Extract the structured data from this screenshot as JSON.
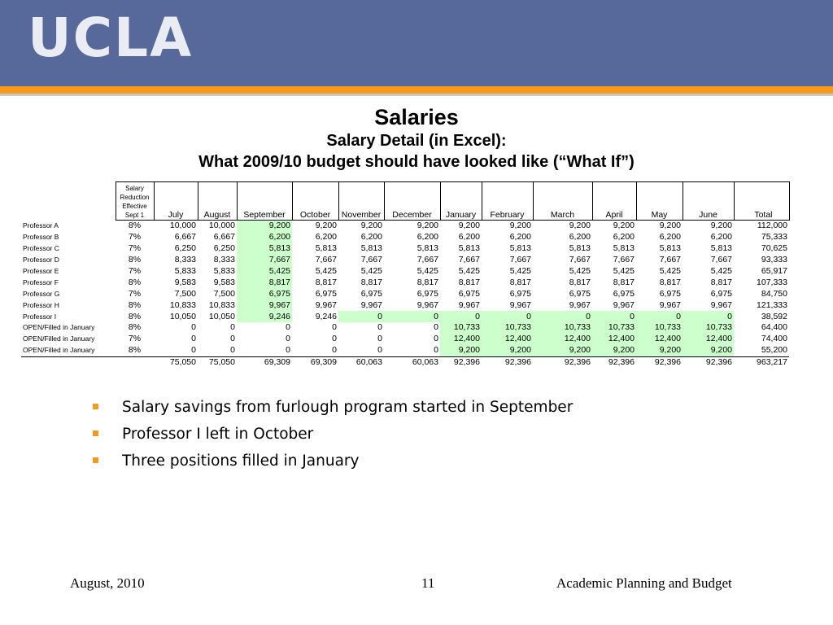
{
  "header": {
    "logo_text": "UCLA",
    "logo_icon": "ucla-wordmark",
    "bar_color": "#56699a",
    "accent_color": "#f59a1b"
  },
  "titles": {
    "title": "Salaries",
    "subtitle1": "Salary Detail (in Excel):",
    "subtitle2": "What 2009/10 budget should have looked like (“What If”)"
  },
  "table": {
    "rate_header": [
      "Salary",
      "Reduction",
      "Effective",
      "Sept 1"
    ],
    "months": [
      "July",
      "August",
      "September",
      "October",
      "November",
      "December",
      "January",
      "February",
      "March",
      "April",
      "May",
      "June"
    ],
    "total_label": "Total",
    "highlight_color": "#ccffcc",
    "rows": [
      {
        "name": "Professor A",
        "pct": "8%",
        "v": [
          "10,000",
          "10,000",
          "9,200",
          "9,200",
          "9,200",
          "9,200",
          "9,200",
          "9,200",
          "9,200",
          "9,200",
          "9,200",
          "9,200"
        ],
        "total": "112,000"
      },
      {
        "name": "Professor B",
        "pct": "7%",
        "v": [
          "6,667",
          "6,667",
          "6,200",
          "6,200",
          "6,200",
          "6,200",
          "6,200",
          "6,200",
          "6,200",
          "6,200",
          "6,200",
          "6,200"
        ],
        "total": "75,333"
      },
      {
        "name": "Professor C",
        "pct": "7%",
        "v": [
          "6,250",
          "6,250",
          "5,813",
          "5,813",
          "5,813",
          "5,813",
          "5,813",
          "5,813",
          "5,813",
          "5,813",
          "5,813",
          "5,813"
        ],
        "total": "70,625"
      },
      {
        "name": "Professor D",
        "pct": "8%",
        "v": [
          "8,333",
          "8,333",
          "7,667",
          "7,667",
          "7,667",
          "7,667",
          "7,667",
          "7,667",
          "7,667",
          "7,667",
          "7,667",
          "7,667"
        ],
        "total": "93,333"
      },
      {
        "name": "Professor E",
        "pct": "7%",
        "v": [
          "5,833",
          "5,833",
          "5,425",
          "5,425",
          "5,425",
          "5,425",
          "5,425",
          "5,425",
          "5,425",
          "5,425",
          "5,425",
          "5,425"
        ],
        "total": "65,917"
      },
      {
        "name": "Professor F",
        "pct": "8%",
        "v": [
          "9,583",
          "9,583",
          "8,817",
          "8,817",
          "8,817",
          "8,817",
          "8,817",
          "8,817",
          "8,817",
          "8,817",
          "8,817",
          "8,817"
        ],
        "total": "107,333"
      },
      {
        "name": "Professor G",
        "pct": "7%",
        "v": [
          "7,500",
          "7,500",
          "6,975",
          "6,975",
          "6,975",
          "6,975",
          "6,975",
          "6,975",
          "6,975",
          "6,975",
          "6,975",
          "6,975"
        ],
        "total": "84,750"
      },
      {
        "name": "Professor H",
        "pct": "8%",
        "v": [
          "10,833",
          "10,833",
          "9,967",
          "9,967",
          "9,967",
          "9,967",
          "9,967",
          "9,967",
          "9,967",
          "9,967",
          "9,967",
          "9,967"
        ],
        "total": "121,333"
      },
      {
        "name": "Professor I",
        "pct": "8%",
        "v": [
          "10,050",
          "10,050",
          "9,246",
          "9,246",
          "0",
          "0",
          "0",
          "0",
          "0",
          "0",
          "0",
          "0"
        ],
        "total": "38,592"
      },
      {
        "name": "OPEN/Filled in January",
        "pct": "8%",
        "v": [
          "0",
          "0",
          "0",
          "0",
          "0",
          "0",
          "10,733",
          "10,733",
          "10,733",
          "10,733",
          "10,733",
          "10,733"
        ],
        "total": "64,400"
      },
      {
        "name": "OPEN/Filled in January",
        "pct": "7%",
        "v": [
          "0",
          "0",
          "0",
          "0",
          "0",
          "0",
          "12,400",
          "12,400",
          "12,400",
          "12,400",
          "12,400",
          "12,400"
        ],
        "total": "74,400"
      },
      {
        "name": "OPEN/Filled in January",
        "pct": "8%",
        "v": [
          "0",
          "0",
          "0",
          "0",
          "0",
          "0",
          "9,200",
          "9,200",
          "9,200",
          "9,200",
          "9,200",
          "9,200"
        ],
        "total": "55,200"
      }
    ],
    "totals": [
      "75,050",
      "75,050",
      "69,309",
      "69,309",
      "60,063",
      "60,063",
      "92,396",
      "92,396",
      "92,396",
      "92,396",
      "92,396",
      "92,396"
    ],
    "grand_total": "963,217"
  },
  "bullets": [
    "Salary savings from furlough program started in September",
    "Professor I left in October",
    "Three positions filled in January"
  ],
  "footer": {
    "date": "August, 2010",
    "page": "11",
    "org": "Academic Planning and Budget"
  }
}
